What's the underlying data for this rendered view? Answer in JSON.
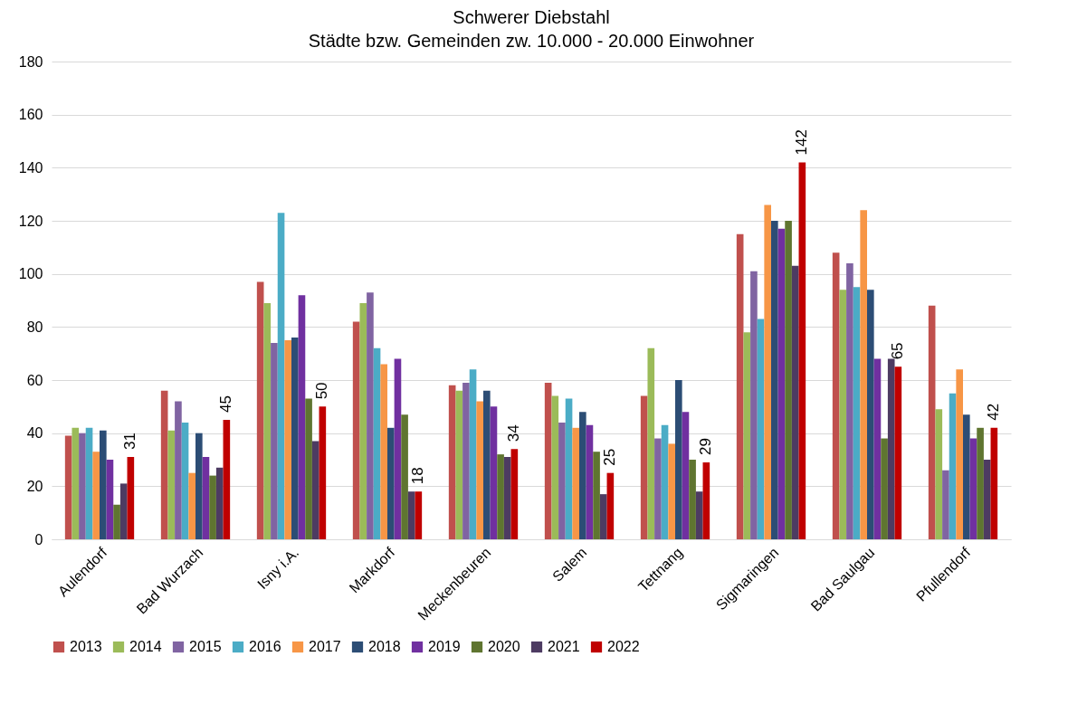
{
  "chart_data": {
    "type": "bar",
    "title": "Schwerer Diebstahl",
    "subtitle": "Städte bzw. Gemeinden zw. 10.000 - 20.000 Einwohner",
    "categories": [
      "Aulendorf",
      "Bad Wurzach",
      "Isny i.A.",
      "Markdorf",
      "Meckenbeuren",
      "Salem",
      "Tettnang",
      "Sigmaringen",
      "Bad Saulgau",
      "Pfullendorf"
    ],
    "series": [
      {
        "name": "2013",
        "color": "#c0504d",
        "values": [
          39,
          56,
          97,
          82,
          58,
          59,
          54,
          115,
          108,
          88
        ]
      },
      {
        "name": "2014",
        "color": "#9bbb59",
        "values": [
          42,
          41,
          89,
          89,
          56,
          54,
          72,
          78,
          94,
          49
        ]
      },
      {
        "name": "2015",
        "color": "#8064a2",
        "values": [
          40,
          52,
          74,
          93,
          59,
          44,
          38,
          101,
          104,
          26
        ]
      },
      {
        "name": "2016",
        "color": "#4bacc6",
        "values": [
          42,
          44,
          123,
          72,
          64,
          53,
          43,
          83,
          95,
          55
        ]
      },
      {
        "name": "2017",
        "color": "#f79646",
        "values": [
          33,
          25,
          75,
          66,
          52,
          42,
          36,
          126,
          124,
          64
        ]
      },
      {
        "name": "2018",
        "color": "#2c4d75",
        "values": [
          41,
          40,
          76,
          42,
          56,
          48,
          60,
          120,
          94,
          47
        ]
      },
      {
        "name": "2019",
        "color": "#7030a0",
        "values": [
          30,
          31,
          92,
          68,
          50,
          43,
          48,
          117,
          68,
          38
        ]
      },
      {
        "name": "2020",
        "color": "#5f7530",
        "values": [
          13,
          24,
          53,
          47,
          32,
          33,
          30,
          120,
          38,
          42
        ]
      },
      {
        "name": "2021",
        "color": "#4d3b62",
        "values": [
          21,
          27,
          37,
          18,
          31,
          17,
          18,
          103,
          68,
          30
        ]
      },
      {
        "name": "2022",
        "color": "#c00000",
        "values": [
          31,
          45,
          50,
          18,
          34,
          25,
          29,
          142,
          65,
          42
        ],
        "value_labels": [
          "31",
          "45",
          "50",
          "18",
          "34",
          "25",
          "29",
          "142",
          "65",
          "42"
        ]
      }
    ],
    "ylim": [
      0,
      180
    ],
    "yticks": [
      0,
      20,
      40,
      60,
      80,
      100,
      120,
      140,
      160,
      180
    ],
    "grid": "y",
    "legend": "bottom"
  }
}
